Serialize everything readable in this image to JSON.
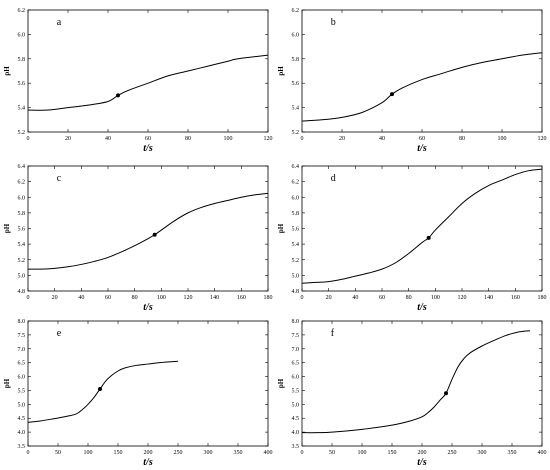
{
  "chart_data": [
    {
      "type": "line",
      "panel_label": "a",
      "xlabel": "t/s",
      "ylabel": "pH",
      "xlim": [
        0,
        120
      ],
      "ylim": [
        5.2,
        6.2
      ],
      "xticks": [
        0,
        20,
        40,
        60,
        80,
        100,
        120
      ],
      "yticks": [
        5.2,
        5.4,
        5.6,
        5.8,
        6.0,
        6.2
      ],
      "ytick_labels": [
        "5.2",
        "5.4",
        "5.6",
        "5.8",
        "6.0",
        "6.2"
      ],
      "x": [
        0,
        10,
        20,
        30,
        40,
        45,
        50,
        60,
        70,
        80,
        90,
        100,
        105,
        120
      ],
      "y": [
        5.38,
        5.38,
        5.4,
        5.42,
        5.45,
        5.5,
        5.54,
        5.6,
        5.66,
        5.7,
        5.74,
        5.78,
        5.8,
        5.83
      ],
      "marker": [
        45,
        5.5
      ]
    },
    {
      "type": "line",
      "panel_label": "b",
      "xlabel": "t/s",
      "ylabel": "pH",
      "xlim": [
        0,
        120
      ],
      "ylim": [
        5.2,
        6.2
      ],
      "xticks": [
        0,
        20,
        40,
        60,
        80,
        100,
        120
      ],
      "yticks": [
        5.2,
        5.4,
        5.6,
        5.8,
        6.0,
        6.2
      ],
      "ytick_labels": [
        "5.2",
        "5.4",
        "5.6",
        "5.8",
        "6.0",
        "6.2"
      ],
      "x": [
        0,
        10,
        20,
        30,
        40,
        45,
        50,
        60,
        70,
        80,
        90,
        100,
        110,
        120
      ],
      "y": [
        5.29,
        5.3,
        5.32,
        5.36,
        5.44,
        5.51,
        5.56,
        5.63,
        5.68,
        5.73,
        5.77,
        5.8,
        5.83,
        5.85
      ],
      "marker": [
        45,
        5.51
      ]
    },
    {
      "type": "line",
      "panel_label": "c",
      "xlabel": "t/s",
      "ylabel": "pH",
      "xlim": [
        0,
        180
      ],
      "ylim": [
        4.8,
        6.4
      ],
      "xticks": [
        0,
        20,
        40,
        60,
        80,
        100,
        120,
        140,
        160,
        180
      ],
      "yticks": [
        4.8,
        5.0,
        5.2,
        5.4,
        5.6,
        5.8,
        6.0,
        6.2,
        6.4
      ],
      "ytick_labels": [
        "4.8",
        "5.0",
        "5.2",
        "5.4",
        "5.6",
        "5.8",
        "6.0",
        "6.2",
        "6.4"
      ],
      "x": [
        0,
        10,
        20,
        30,
        40,
        50,
        60,
        70,
        80,
        90,
        95,
        100,
        110,
        120,
        130,
        140,
        150,
        160,
        170,
        180
      ],
      "y": [
        5.08,
        5.08,
        5.09,
        5.11,
        5.14,
        5.18,
        5.23,
        5.3,
        5.38,
        5.47,
        5.52,
        5.58,
        5.7,
        5.8,
        5.87,
        5.92,
        5.96,
        6.0,
        6.03,
        6.05
      ],
      "marker": [
        95,
        5.52
      ]
    },
    {
      "type": "line",
      "panel_label": "d",
      "xlabel": "t/s",
      "ylabel": "pH",
      "xlim": [
        0,
        180
      ],
      "ylim": [
        4.8,
        6.4
      ],
      "xticks": [
        0,
        20,
        40,
        60,
        80,
        100,
        120,
        140,
        160,
        180
      ],
      "yticks": [
        4.8,
        5.0,
        5.2,
        5.4,
        5.6,
        5.8,
        6.0,
        6.2,
        6.4
      ],
      "ytick_labels": [
        "4.8",
        "5.0",
        "5.2",
        "5.4",
        "5.6",
        "5.8",
        "6.0",
        "6.2",
        "6.4"
      ],
      "x": [
        0,
        10,
        20,
        30,
        40,
        50,
        60,
        70,
        80,
        90,
        95,
        100,
        110,
        120,
        130,
        140,
        150,
        160,
        170,
        180
      ],
      "y": [
        4.9,
        4.91,
        4.92,
        4.95,
        4.99,
        5.03,
        5.08,
        5.16,
        5.28,
        5.42,
        5.48,
        5.58,
        5.75,
        5.92,
        6.05,
        6.15,
        6.22,
        6.29,
        6.34,
        6.36
      ],
      "marker": [
        95,
        5.48
      ]
    },
    {
      "type": "line",
      "panel_label": "e",
      "xlabel": "t/s",
      "ylabel": "pH",
      "xlim": [
        0,
        400
      ],
      "ylim": [
        3.5,
        8.0
      ],
      "xticks": [
        0,
        50,
        100,
        150,
        200,
        250,
        300,
        350,
        400
      ],
      "yticks": [
        3.5,
        4.0,
        4.5,
        5.0,
        5.5,
        6.0,
        6.5,
        7.0,
        7.5,
        8.0
      ],
      "ytick_labels": [
        "3.5",
        "4.0",
        "4.5",
        "5.0",
        "5.5",
        "6.0",
        "6.5",
        "7.0",
        "7.5",
        "8.0"
      ],
      "x": [
        0,
        20,
        40,
        60,
        80,
        90,
        100,
        110,
        120,
        130,
        140,
        150,
        160,
        180,
        200,
        220,
        250
      ],
      "y": [
        4.35,
        4.4,
        4.47,
        4.55,
        4.65,
        4.8,
        5.0,
        5.25,
        5.55,
        5.85,
        6.05,
        6.2,
        6.3,
        6.4,
        6.45,
        6.5,
        6.55
      ],
      "marker": [
        120,
        5.55
      ]
    },
    {
      "type": "line",
      "panel_label": "f",
      "xlabel": "t/s",
      "ylabel": "pH",
      "xlim": [
        0,
        400
      ],
      "ylim": [
        3.5,
        8.0
      ],
      "xticks": [
        0,
        50,
        100,
        150,
        200,
        250,
        300,
        350,
        400
      ],
      "yticks": [
        3.5,
        4.0,
        4.5,
        5.0,
        5.5,
        6.0,
        6.5,
        7.0,
        7.5,
        8.0
      ],
      "ytick_labels": [
        "3.5",
        "4.0",
        "4.5",
        "5.0",
        "5.5",
        "6.0",
        "6.5",
        "7.0",
        "7.5",
        "8.0"
      ],
      "x": [
        0,
        25,
        50,
        100,
        150,
        180,
        200,
        210,
        220,
        230,
        240,
        250,
        260,
        270,
        280,
        300,
        320,
        340,
        360,
        380
      ],
      "y": [
        3.98,
        3.98,
        4.0,
        4.1,
        4.25,
        4.4,
        4.55,
        4.7,
        4.9,
        5.15,
        5.4,
        5.9,
        6.35,
        6.65,
        6.85,
        7.1,
        7.3,
        7.48,
        7.6,
        7.65
      ],
      "marker": [
        240,
        5.4
      ]
    }
  ]
}
